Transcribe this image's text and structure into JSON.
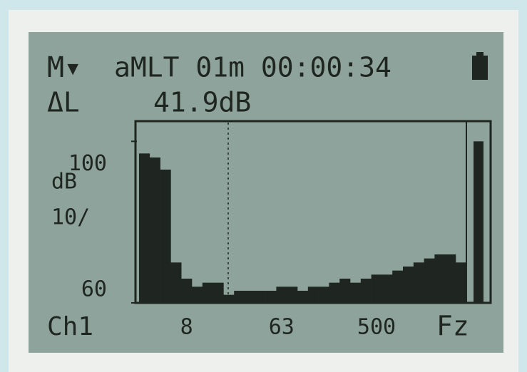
{
  "mode": "M▾",
  "header": "aMLT 01m 00:00:34",
  "delta_label": "ΔL",
  "delta_value": "41.9dB",
  "chart_data": {
    "type": "bar",
    "y_unit": "dB",
    "y_scale": "10/",
    "channel": "Ch1",
    "weighting": "Fz",
    "weighting_value": 100,
    "categories": [
      null,
      null,
      null,
      null,
      "8",
      null,
      null,
      null,
      null,
      null,
      null,
      null,
      null,
      "63",
      null,
      null,
      null,
      null,
      null,
      null,
      null,
      null,
      "500",
      null,
      null,
      null,
      null,
      null,
      null,
      null,
      null
    ],
    "values": [
      97,
      96,
      93,
      70,
      66,
      64,
      65,
      65,
      62,
      63,
      63,
      63,
      63,
      64,
      64,
      63,
      64,
      64,
      65,
      66,
      65,
      66,
      67,
      67,
      68,
      69,
      70,
      71,
      72,
      72,
      70
    ],
    "color": "#1f2622",
    "ylim": [
      60,
      105
    ],
    "yticks": [
      60,
      100
    ]
  }
}
